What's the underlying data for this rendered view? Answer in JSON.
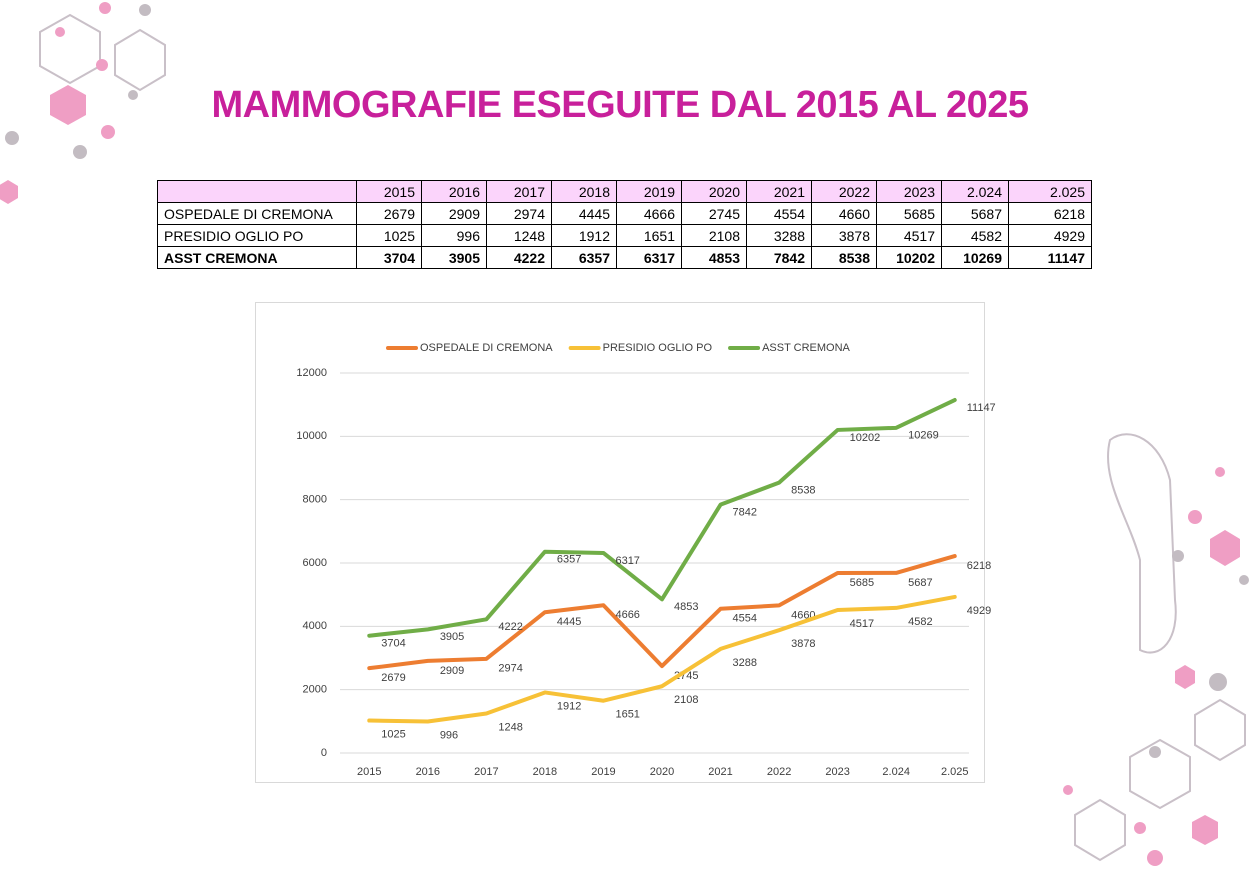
{
  "title": "MAMMOGRAFIE ESEGUITE DAL 2015 AL 2025",
  "table": {
    "header": [
      "2015",
      "2016",
      "2017",
      "2018",
      "2019",
      "2020",
      "2021",
      "2022",
      "2023",
      "2.024",
      "2.025"
    ],
    "rows": [
      {
        "label": "OSPEDALE DI CREMONA",
        "values": [
          2679,
          2909,
          2974,
          4445,
          4666,
          2745,
          4554,
          4660,
          5685,
          5687,
          6218
        ]
      },
      {
        "label": "PRESIDIO OGLIO PO",
        "values": [
          1025,
          996,
          1248,
          1912,
          1651,
          2108,
          3288,
          3878,
          4517,
          4582,
          4929
        ]
      },
      {
        "label": "ASST CREMONA",
        "values": [
          3704,
          3905,
          4222,
          6357,
          6317,
          4853,
          7842,
          8538,
          10202,
          10269,
          11147
        ]
      }
    ]
  },
  "chart_data": {
    "type": "line",
    "categories": [
      "2015",
      "2016",
      "2017",
      "2018",
      "2019",
      "2020",
      "2021",
      "2022",
      "2023",
      "2.024",
      "2.025"
    ],
    "series": [
      {
        "name": "OSPEDALE DI CREMONA",
        "color": "#ed7d31",
        "values": [
          2679,
          2909,
          2974,
          4445,
          4666,
          2745,
          4554,
          4660,
          5685,
          5687,
          6218
        ]
      },
      {
        "name": "PRESIDIO OGLIO PO",
        "color": "#f7c137",
        "values": [
          1025,
          996,
          1248,
          1912,
          1651,
          2108,
          3288,
          3878,
          4517,
          4582,
          4929
        ]
      },
      {
        "name": "ASST CREMONA",
        "color": "#70ad47",
        "values": [
          3704,
          3905,
          4222,
          6357,
          6317,
          4853,
          7842,
          8538,
          10202,
          10269,
          11147
        ]
      }
    ],
    "ylim": [
      0,
      12000
    ],
    "yticks": [
      0,
      2000,
      4000,
      6000,
      8000,
      10000,
      12000
    ],
    "grid": true,
    "legend": "top"
  }
}
